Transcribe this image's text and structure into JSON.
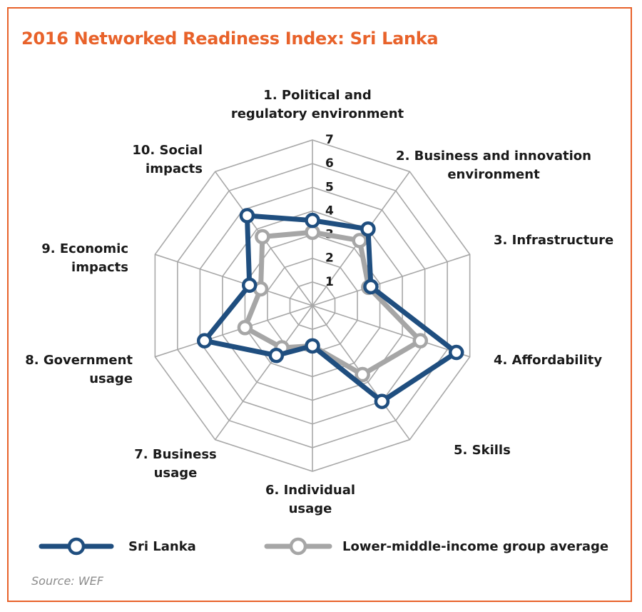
{
  "title": "2016 Networked Readiness Index: Sri Lanka",
  "source": "Source: WEF",
  "colors": {
    "accent": "#E8622A",
    "sri_lanka": "#1F4E7F",
    "group_avg": "#A6A6A6",
    "grid": "#A8A8A8"
  },
  "chart_data": {
    "type": "radar",
    "title": "2016 Networked Readiness Index: Sri Lanka",
    "scale": {
      "min": 0,
      "max": 7,
      "ticks": [
        1,
        2,
        3,
        4,
        5,
        6,
        7
      ]
    },
    "axes": [
      [
        "1. Political and",
        "regulatory environment"
      ],
      [
        "2. Business and innovation",
        "environment"
      ],
      [
        "3. Infrastructure"
      ],
      [
        "4. Affordability"
      ],
      [
        "5. Skills"
      ],
      [
        "6. Individual",
        "usage"
      ],
      [
        "7. Business",
        "usage"
      ],
      [
        "8. Government",
        "usage"
      ],
      [
        "9. Economic",
        "impacts"
      ],
      [
        "10. Social",
        "impacts"
      ]
    ],
    "series": [
      {
        "name": "Sri Lanka",
        "color": "#1F4E7F",
        "values": [
          3.6,
          4.0,
          2.6,
          6.4,
          5.0,
          1.7,
          2.6,
          4.8,
          2.8,
          4.7
        ]
      },
      {
        "name": "Lower-middle-income group average",
        "color": "#A6A6A6",
        "values": [
          3.1,
          3.4,
          2.5,
          4.8,
          3.6,
          1.7,
          2.2,
          3.0,
          2.3,
          3.6
        ]
      }
    ],
    "legend": "bottom",
    "grid": true
  }
}
